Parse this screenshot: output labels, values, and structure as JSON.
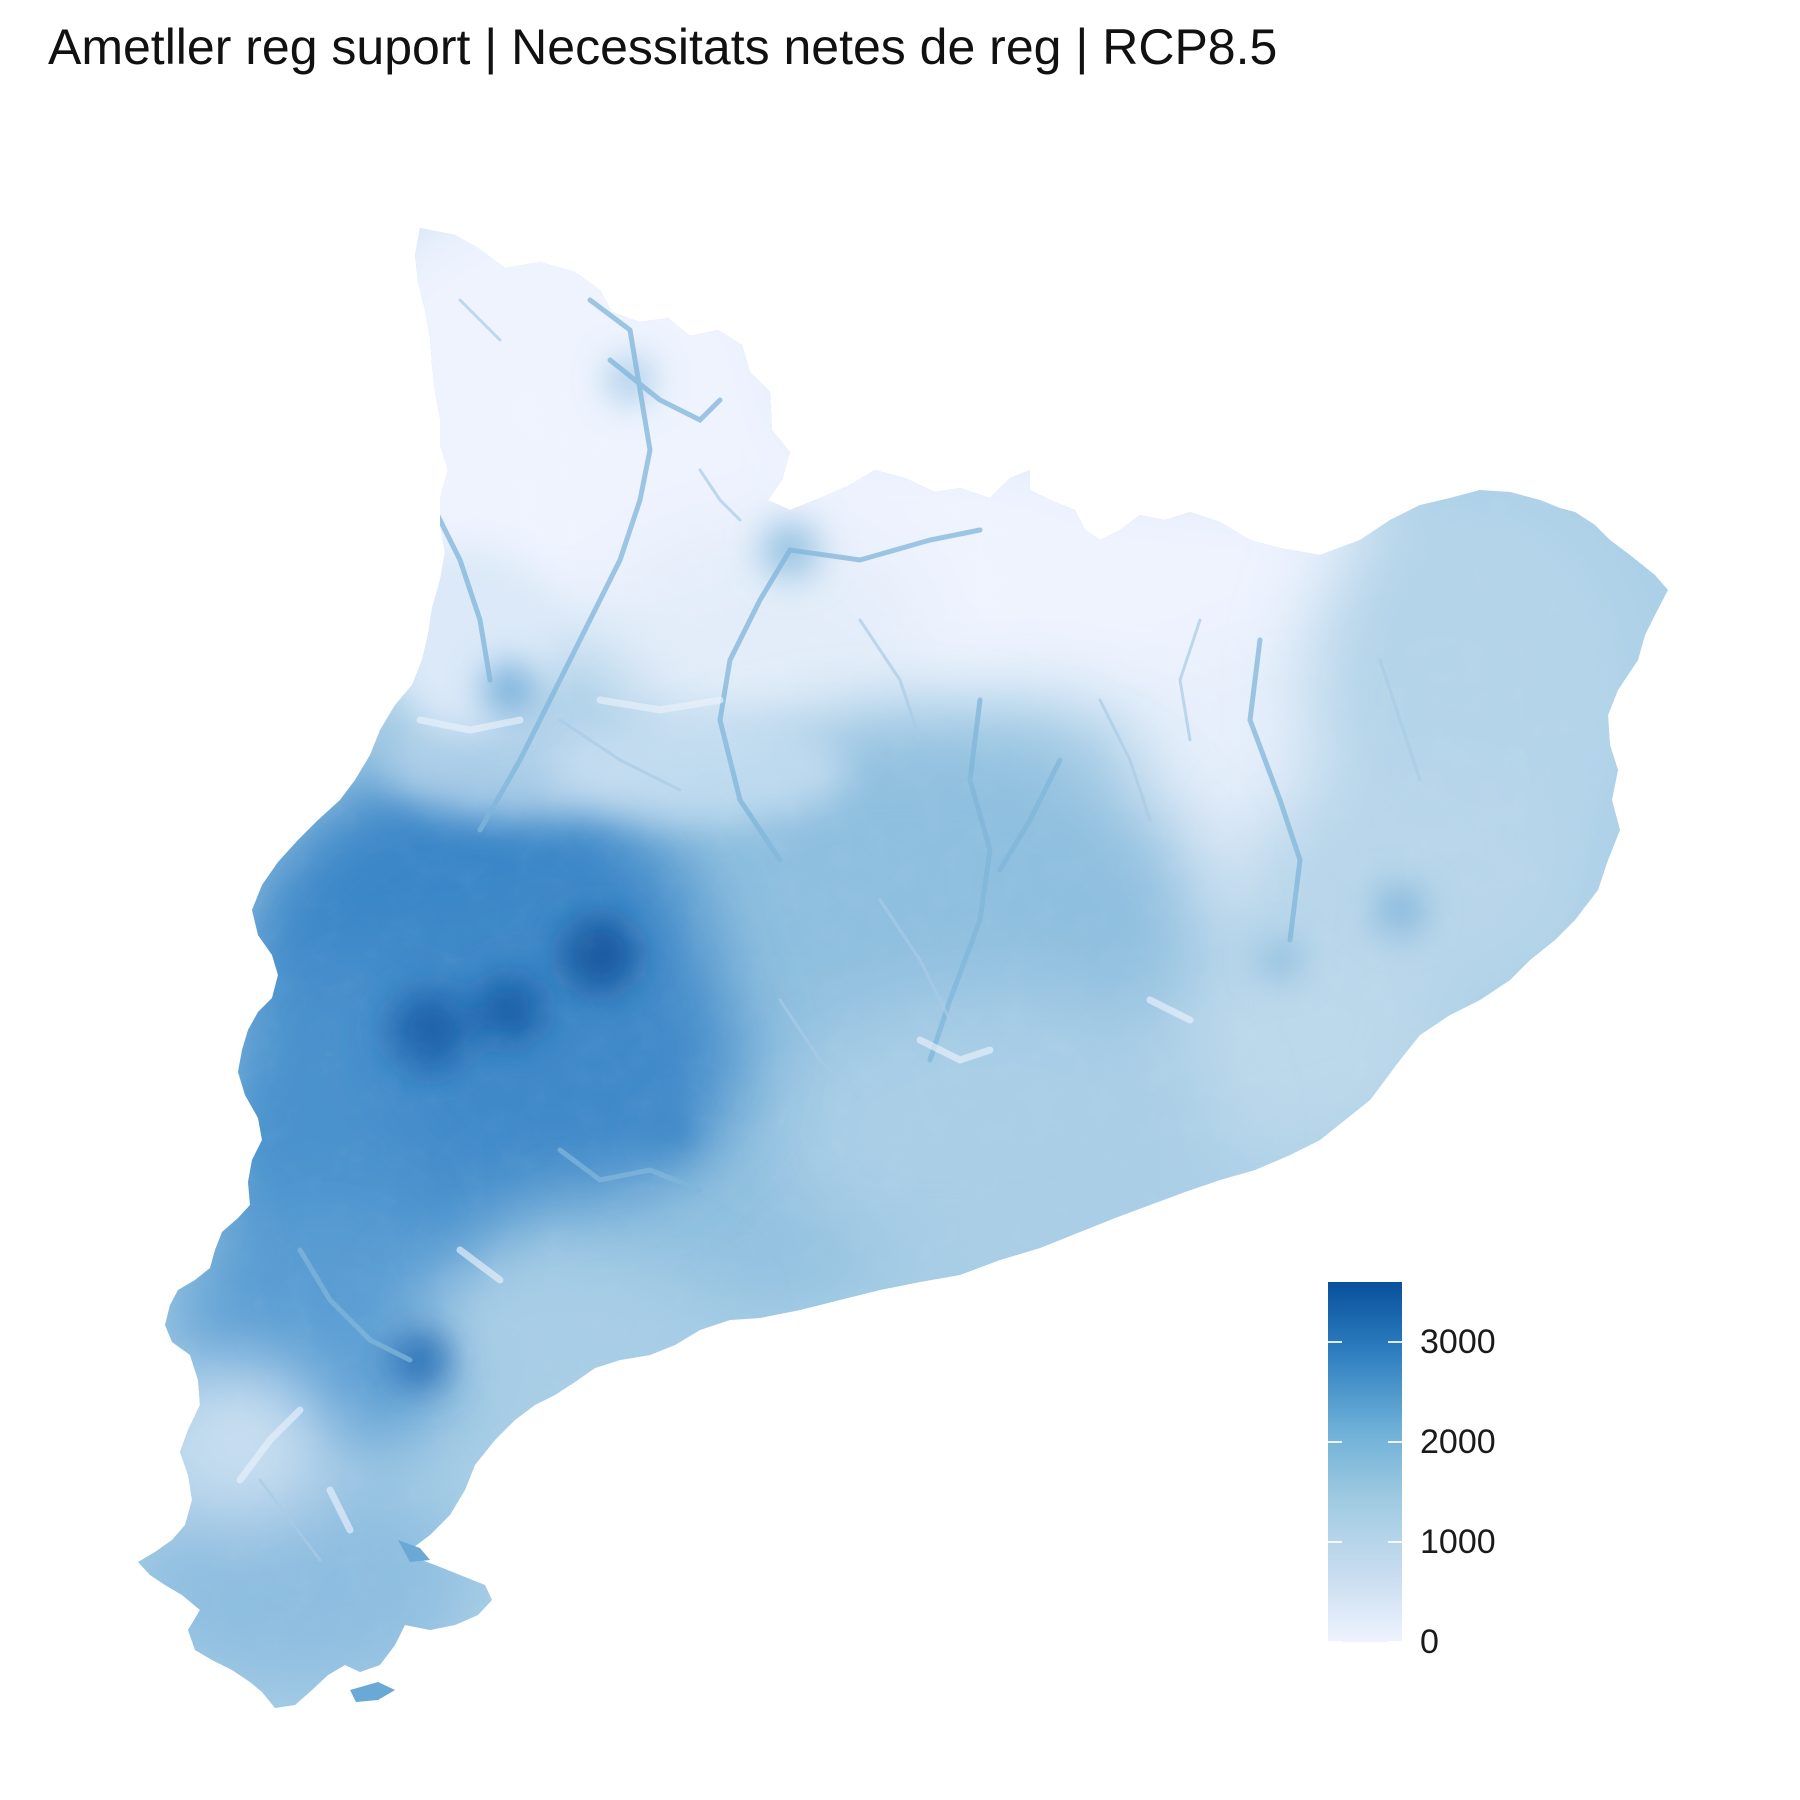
{
  "title": "Ametller reg suport | Necessitats netes de reg | RCP8.5",
  "map": {
    "region": "Catalonia",
    "variable": "Necessitats netes de reg",
    "scenario": "RCP8.5"
  },
  "legend": {
    "min": 0,
    "max": 3600,
    "colors": [
      "#eef3fe",
      "#c6dbef",
      "#9ecae1",
      "#6baed6",
      "#2f7fc1",
      "#08519c"
    ],
    "ticks": [
      {
        "value": 3000,
        "label": "3000"
      },
      {
        "value": 2000,
        "label": "2000"
      },
      {
        "value": 1000,
        "label": "1000"
      },
      {
        "value": 0,
        "label": "0"
      }
    ]
  }
}
